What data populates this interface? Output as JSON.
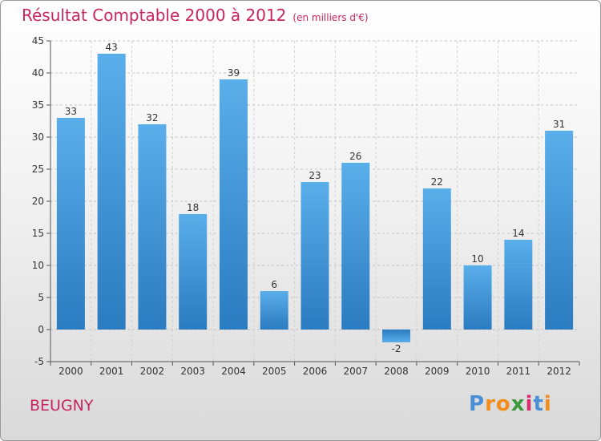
{
  "chart_data": {
    "type": "bar",
    "title": "Résultat Comptable 2000 à 2012",
    "subtitle": "(en milliers d'€)",
    "categories": [
      "2000",
      "2001",
      "2002",
      "2003",
      "2004",
      "2005",
      "2006",
      "2007",
      "2008",
      "2009",
      "2010",
      "2011",
      "2012"
    ],
    "values": [
      33,
      43,
      32,
      18,
      39,
      6,
      23,
      26,
      -2,
      22,
      10,
      14,
      31
    ],
    "ylim": [
      -5,
      45
    ],
    "yticks": [
      -5,
      0,
      5,
      10,
      15,
      20,
      25,
      30,
      35,
      40,
      45
    ],
    "grid": true,
    "xlabel": "",
    "ylabel": ""
  },
  "commune": "BEUGNY",
  "logo": {
    "letters": [
      "P",
      "r",
      "o",
      "x",
      "i",
      "t",
      "i"
    ],
    "colors": [
      "#4a8fd6",
      "#f28c1a",
      "#f28c1a",
      "#3a9a3a",
      "#d62e6f",
      "#4a8fd6",
      "#f28c1a"
    ]
  },
  "colors": {
    "title": "#c8245e",
    "bar_light": "#5aaeea",
    "bar_dark": "#2b7bc0"
  }
}
